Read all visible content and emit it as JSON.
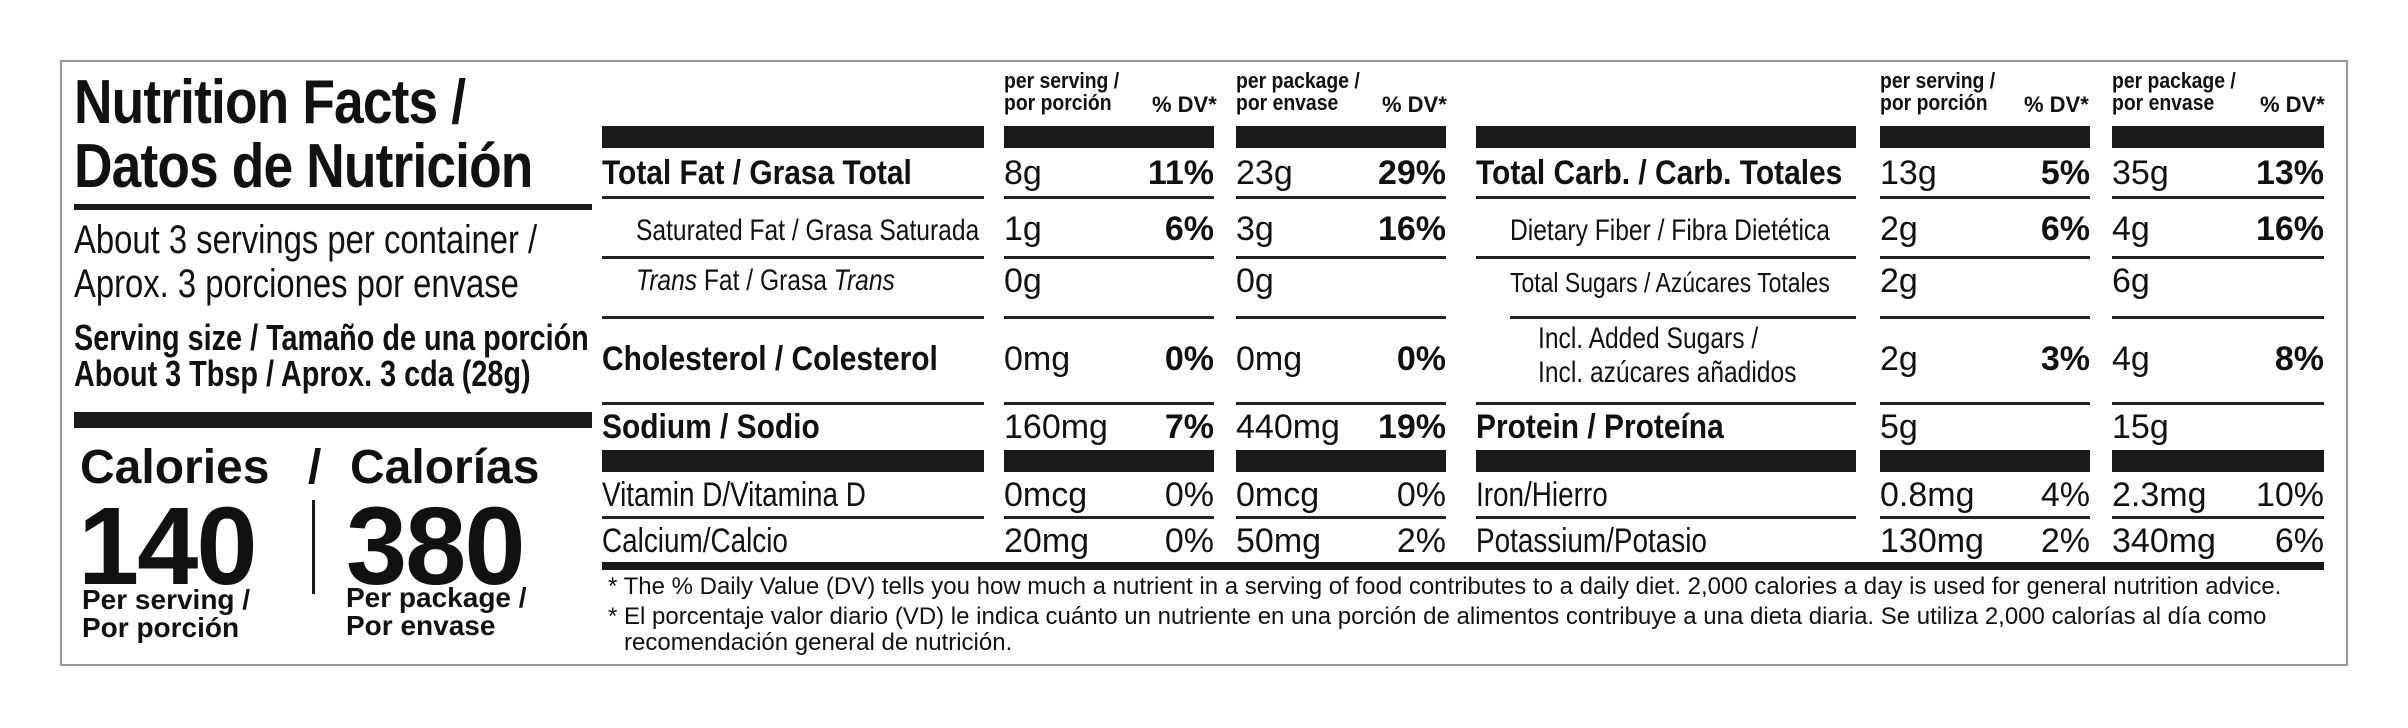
{
  "title_line1": "Nutrition Facts /",
  "title_line2": "Datos de Nutrición",
  "servings_line1": "About 3 servings per container /",
  "servings_line2": "Aprox. 3 porciones por envase",
  "serving_size_line1": "Serving size / Tamaño de una porción",
  "serving_size_line2": "About 3 Tbsp / Aprox. 3 cda (28g)",
  "calories": {
    "label_en": "Calories",
    "slash": "/",
    "label_es": "Calorías",
    "per_serving": "140",
    "per_package": "380",
    "per_serving_label1": "Per serving /",
    "per_serving_label2": "Por porción",
    "per_package_label1": "Per package /",
    "per_package_label2": "Por envase"
  },
  "headers": {
    "per_serving1": "per serving /",
    "per_serving2": "por porción",
    "per_package1": "per package /",
    "per_package2": "por envase",
    "dv": "% DV*"
  },
  "left_rows": [
    {
      "name": "Total Fat / Grasa Total",
      "serv": "8g",
      "serv_dv": "11%",
      "pkg": "23g",
      "pkg_dv": "29%"
    },
    {
      "name": "Saturated Fat / Grasa Saturada",
      "serv": "1g",
      "serv_dv": "6%",
      "pkg": "3g",
      "pkg_dv": "16%"
    },
    {
      "name_it1": "Trans",
      "name_mid": " Fat / Grasa ",
      "name_it2": "Trans",
      "serv": "0g",
      "pkg": "0g"
    },
    {
      "name": "Cholesterol / Colesterol",
      "serv": "0mg",
      "serv_dv": "0%",
      "pkg": "0mg",
      "pkg_dv": "0%"
    },
    {
      "name": "Sodium / Sodio",
      "serv": "160mg",
      "serv_dv": "7%",
      "pkg": "440mg",
      "pkg_dv": "19%"
    },
    {
      "name": "Vitamin D/Vitamina D",
      "serv": "0mcg",
      "serv_dv": "0%",
      "pkg": "0mcg",
      "pkg_dv": "0%"
    },
    {
      "name": "Calcium/Calcio",
      "serv": "20mg",
      "serv_dv": "0%",
      "pkg": "50mg",
      "pkg_dv": "2%"
    }
  ],
  "right_rows": [
    {
      "name": "Total Carb. / Carb. Totales",
      "serv": "13g",
      "serv_dv": "5%",
      "pkg": "35g",
      "pkg_dv": "13%"
    },
    {
      "name": "Dietary Fiber / Fibra Dietética",
      "serv": "2g",
      "serv_dv": "6%",
      "pkg": "4g",
      "pkg_dv": "16%"
    },
    {
      "name": "Total Sugars / Azúcares Totales",
      "serv": "2g",
      "pkg": "6g"
    },
    {
      "name1": "Incl. Added Sugars /",
      "name2": "Incl. azúcares añadidos",
      "serv": "2g",
      "serv_dv": "3%",
      "pkg": "4g",
      "pkg_dv": "8%"
    },
    {
      "name": "Protein / Proteína",
      "serv": "5g",
      "pkg": "15g"
    },
    {
      "name": "Iron/Hierro",
      "serv": "0.8mg",
      "serv_dv": "4%",
      "pkg": "2.3mg",
      "pkg_dv": "10%"
    },
    {
      "name": "Potassium/Potasio",
      "serv": "130mg",
      "serv_dv": "2%",
      "pkg": "340mg",
      "pkg_dv": "6%"
    }
  ],
  "footnote_en": "* The % Daily Value (DV) tells you how much a nutrient in a serving of food contributes to a daily diet. 2,000 calories a day is used for general nutrition advice.",
  "footnote_es1": "* El porcentaje valor diario (VD) le indica cuánto un nutriente en una porción de alimentos contribuye a una dieta diaria. Se utiliza 2,000 calorías al día como",
  "footnote_es2": "recomendación general de nutrición."
}
